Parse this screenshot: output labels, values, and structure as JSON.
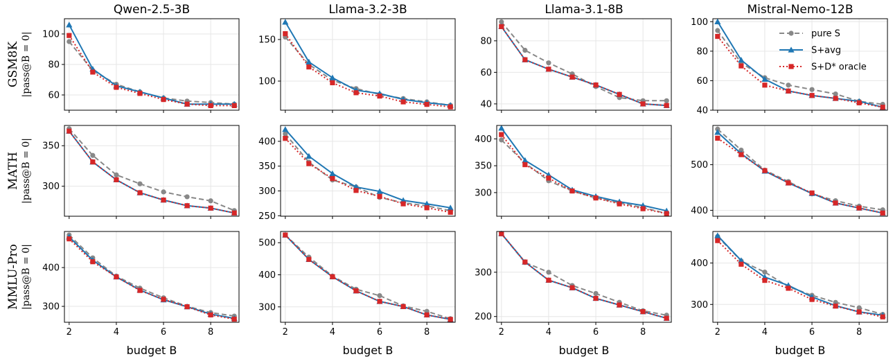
{
  "chart_data": {
    "type": "line",
    "col_titles": [
      "Qwen-2.5-3B",
      "Llama-3.2-3B",
      "Llama-3.1-8B",
      "Mistral-Nemo-12B"
    ],
    "row_labels": [
      "GSM8K",
      "MATH",
      "MMLU-Pro"
    ],
    "row_sublabel": "|pass@B = 0|",
    "xlabel": "budget B",
    "x": [
      2,
      3,
      4,
      5,
      6,
      7,
      8,
      9
    ],
    "xticks": [
      2,
      4,
      6,
      8
    ],
    "legend": [
      {
        "name": "pure S",
        "color": "#888888",
        "marker": "circle",
        "dash": "dashed"
      },
      {
        "name": "S+avg",
        "color": "#1f77b4",
        "marker": "triangle",
        "dash": "solid"
      },
      {
        "name": "S+D* oracle",
        "color": "#d62728",
        "marker": "square",
        "dash": "dotted"
      }
    ],
    "legend_placement": "top-right of Mistral-Nemo-12B / GSM8K panel",
    "grid": true,
    "panels": [
      [
        {
          "ylim": [
            50,
            110
          ],
          "yticks": [
            60,
            80,
            100
          ],
          "series": [
            [
              95,
              76,
              67,
              62,
              58,
              56,
              55,
              54
            ],
            [
              106,
              77,
              66,
              62,
              58,
              54,
              54,
              54
            ],
            [
              99,
              75,
              65,
              61,
              57,
              54,
              53,
              53
            ]
          ]
        },
        {
          "ylim": [
            65,
            175
          ],
          "yticks": [
            100,
            150
          ],
          "series": [
            [
              153,
              120,
              101,
              91,
              84,
              79,
              75,
              71
            ],
            [
              171,
              123,
              104,
              89,
              85,
              78,
              74,
              71
            ],
            [
              157,
              117,
              98,
              86,
              82,
              75,
              72,
              69
            ]
          ]
        },
        {
          "ylim": [
            36,
            94
          ],
          "yticks": [
            40,
            60,
            80
          ],
          "series": [
            [
              92,
              74,
              66,
              59,
              51,
              44,
              42,
              42
            ],
            [
              89,
              68,
              62,
              57,
              52,
              46,
              40,
              39
            ],
            [
              89,
              68,
              62,
              57,
              52,
              46,
              40,
              39
            ]
          ]
        },
        {
          "ylim": [
            40,
            102
          ],
          "yticks": [
            40,
            60,
            80,
            100
          ],
          "series": [
            [
              94,
              72,
              62,
              57,
              54,
              51,
              46,
              44
            ],
            [
              100,
              74,
              61,
              53,
              50,
              48,
              46,
              42
            ],
            [
              90,
              70,
              57,
              53,
              50,
              48,
              45,
              42
            ]
          ]
        }
      ],
      [
        {
          "ylim": [
            263,
            375
          ],
          "yticks": [
            300,
            350
          ],
          "series": [
            [
              371,
              338,
              314,
              303,
              293,
              287,
              282,
              270
            ],
            [
              368,
              330,
              308,
              292,
              283,
              276,
              273,
              267
            ],
            [
              368,
              330,
              308,
              292,
              283,
              276,
              273,
              267
            ]
          ]
        },
        {
          "ylim": [
            249,
            432
          ],
          "yticks": [
            250,
            300,
            350,
            400
          ],
          "series": [
            [
              415,
              358,
              322,
              308,
              287,
              276,
              270,
              260
            ],
            [
              424,
              370,
              335,
              308,
              299,
              281,
              274,
              266
            ],
            [
              406,
              355,
              325,
              301,
              289,
              274,
              266,
              257
            ]
          ]
        },
        {
          "ylim": [
            256,
            425
          ],
          "yticks": [
            300,
            350,
            400
          ],
          "series": [
            [
              398,
              355,
              322,
              303,
              290,
              281,
              272,
              261
            ],
            [
              420,
              360,
              333,
              305,
              293,
              283,
              276,
              266
            ],
            [
              408,
              352,
              327,
              303,
              290,
              279,
              270,
              261
            ]
          ]
        },
        {
          "ylim": [
            387,
            586
          ],
          "yticks": [
            400,
            500
          ],
          "series": [
            [
              578,
              532,
              488,
              463,
              436,
              421,
              409,
              401
            ],
            [
              571,
              524,
              486,
              460,
              437,
              416,
              405,
              394
            ],
            [
              558,
              522,
              487,
              460,
              438,
              416,
              405,
              394
            ]
          ]
        }
      ],
      [
        {
          "ylim": [
            259,
            493
          ],
          "yticks": [
            300,
            400
          ],
          "series": [
            [
              484,
              425,
              378,
              347,
              322,
              300,
              284,
              275
            ],
            [
              479,
              419,
              376,
              342,
              317,
              299,
              280,
              269
            ],
            [
              474,
              415,
              376,
              341,
              318,
              299,
              278,
              267
            ]
          ]
        },
        {
          "ylim": [
            252,
            535
          ],
          "yticks": [
            300,
            400,
            500
          ],
          "series": [
            [
              524,
              455,
              396,
              355,
              335,
              303,
              286,
              263
            ],
            [
              524,
              448,
              394,
              350,
              317,
              301,
              275,
              261
            ],
            [
              524,
              448,
              394,
              350,
              317,
              301,
              275,
              261
            ]
          ]
        },
        {
          "ylim": [
            187,
            392
          ],
          "yticks": [
            200,
            300
          ],
          "series": [
            [
              387,
              322,
              300,
              270,
              252,
              232,
              213,
              203
            ],
            [
              387,
              323,
              282,
              265,
              241,
              226,
              211,
              196
            ],
            [
              387,
              323,
              282,
              265,
              241,
              226,
              211,
              196
            ]
          ]
        },
        {
          "ylim": [
            257,
            476
          ],
          "yticks": [
            300,
            400
          ],
          "series": [
            [
              464,
              405,
              378,
              343,
              322,
              305,
              292,
              276
            ],
            [
              466,
              406,
              366,
              346,
              318,
              297,
              282,
              274
            ],
            [
              454,
              397,
              358,
              339,
              312,
              296,
              282,
              270
            ]
          ]
        }
      ]
    ]
  }
}
